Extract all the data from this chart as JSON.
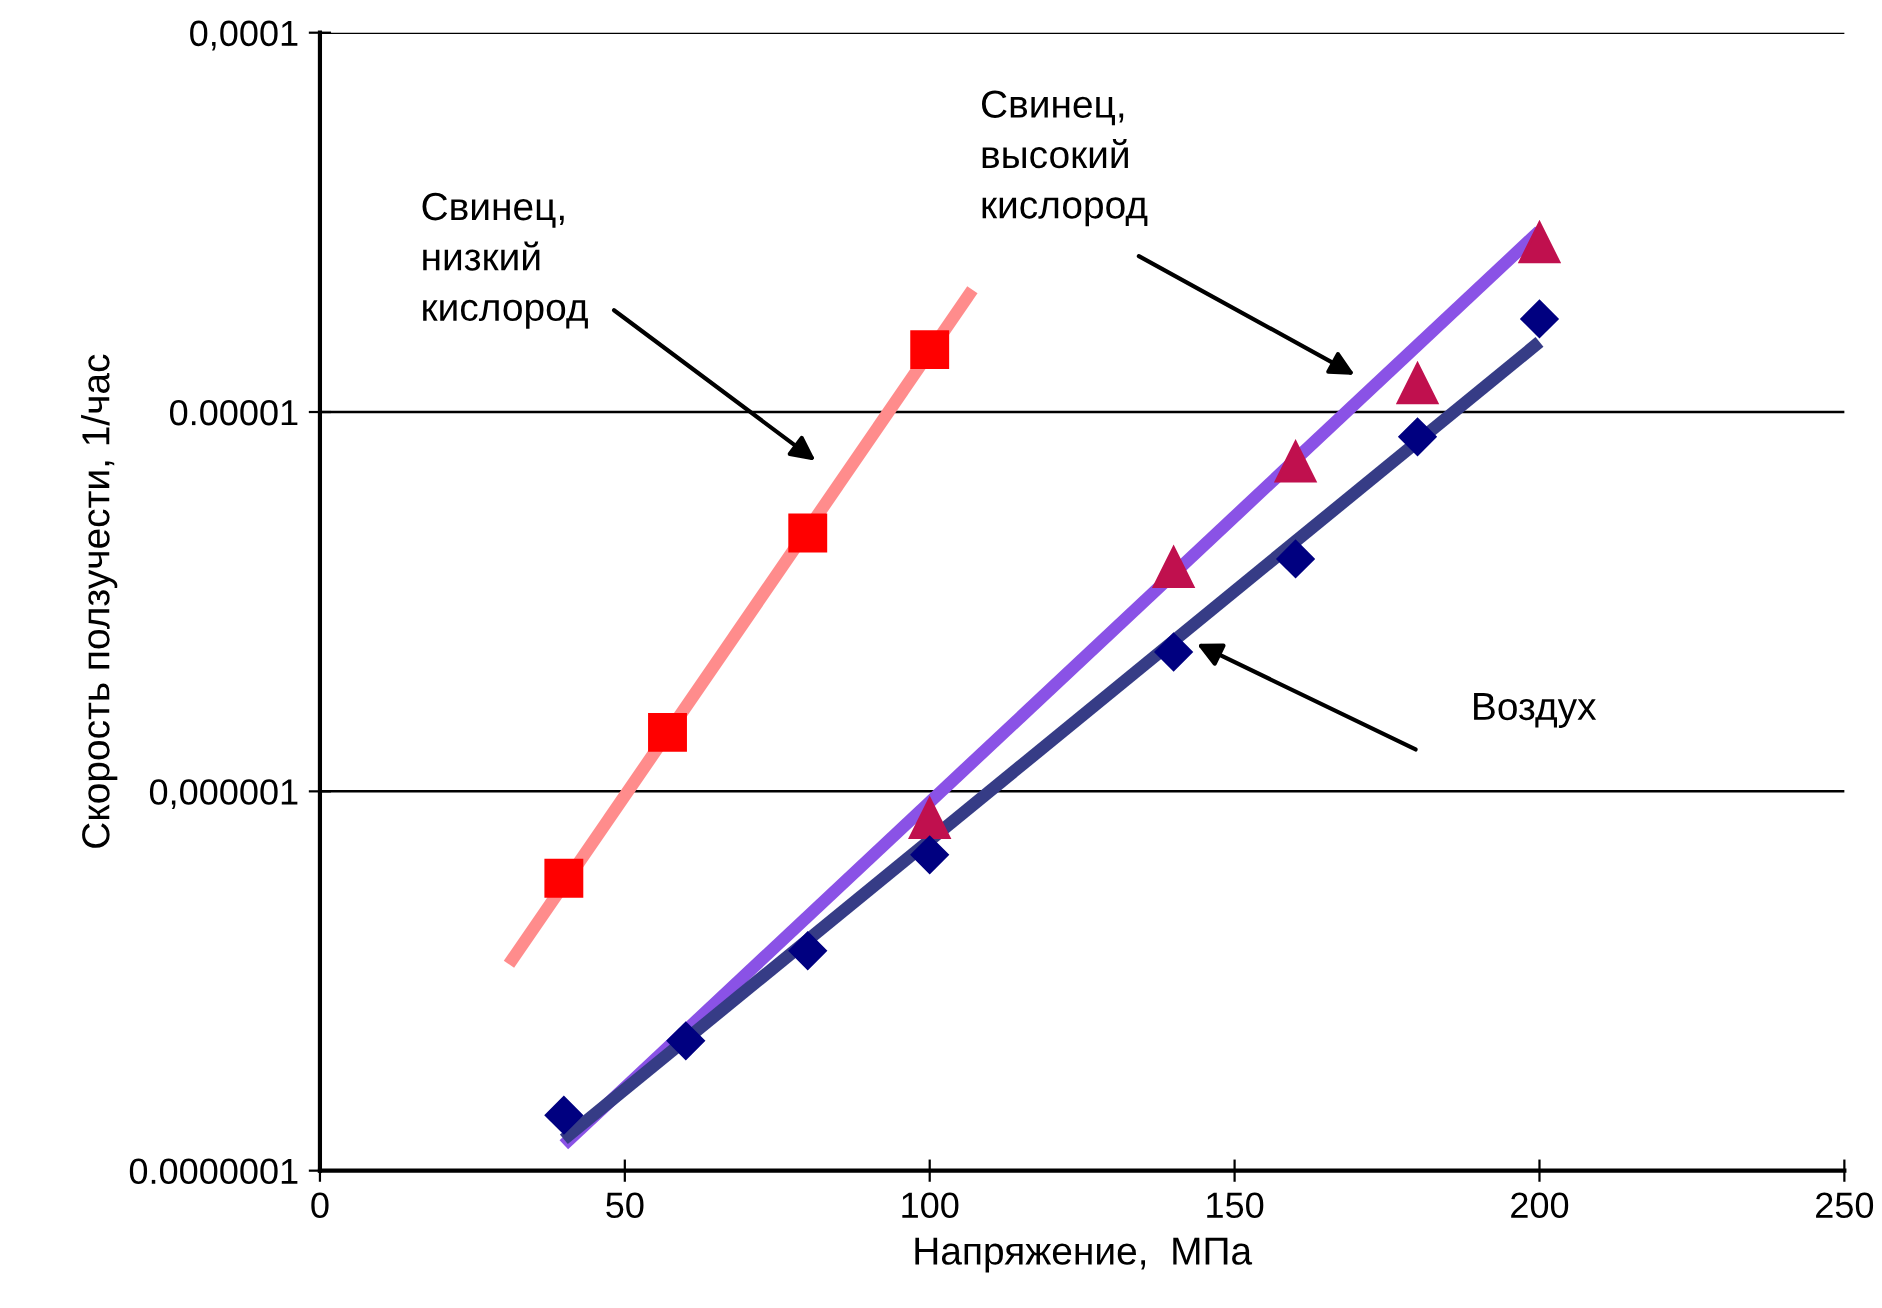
{
  "chart_data": {
    "type": "scatter",
    "xlabel": "Напряжение,  МПа",
    "ylabel": "Скорость ползучести, 1/час",
    "log": "y",
    "grid": "y",
    "xlim": [
      0,
      250
    ],
    "xticks": [
      0,
      50,
      100,
      150,
      200,
      250
    ],
    "ylim": [
      1e-07,
      0.0001
    ],
    "yticks": [
      {
        "value": 1e-07,
        "label": "0.0000001"
      },
      {
        "value": 1e-06,
        "label": "0,000001"
      },
      {
        "value": 1e-05,
        "label": "0.00001"
      },
      {
        "value": 0.0001,
        "label": "0,0001"
      }
    ],
    "series": [
      {
        "type": "line",
        "color": "#ff8c8c",
        "marker": "none",
        "x": [
          31,
          107
        ],
        "values": [
          3.5e-07,
          2.1e-05
        ]
      },
      {
        "type": "line",
        "color": "#8a52e6",
        "marker": "none",
        "x": [
          40,
          200
        ],
        "values": [
          1.17e-07,
          3e-05
        ]
      },
      {
        "type": "line",
        "color": "#363c86",
        "marker": "none",
        "x": [
          40,
          200
        ],
        "values": [
          1.21e-07,
          1.53e-05
        ]
      },
      {
        "color": "#ff0000",
        "marker": "square",
        "x": [
          40,
          57,
          80,
          100
        ],
        "values": [
          5.9e-07,
          1.43e-06,
          4.8e-06,
          1.46e-05
        ]
      },
      {
        "color": "#c0104e",
        "marker": "triangle",
        "x": [
          100,
          140,
          160,
          180,
          200
        ],
        "values": [
          8.5e-07,
          3.9e-06,
          7.4e-06,
          1.19e-05,
          2.8e-05
        ]
      },
      {
        "color": "#000080",
        "marker": "diamond",
        "x": [
          40,
          60,
          80,
          100,
          140,
          160,
          180,
          200
        ],
        "values": [
          1.4e-07,
          2.2e-07,
          3.8e-07,
          6.8e-07,
          2.33e-06,
          4.1e-06,
          8.6e-06,
          1.76e-05
        ]
      }
    ],
    "annotations": [
      "Свинец,\nнизкий\nкислород",
      "Свинец,\nвысокий\nкислород",
      "Воздух"
    ]
  }
}
